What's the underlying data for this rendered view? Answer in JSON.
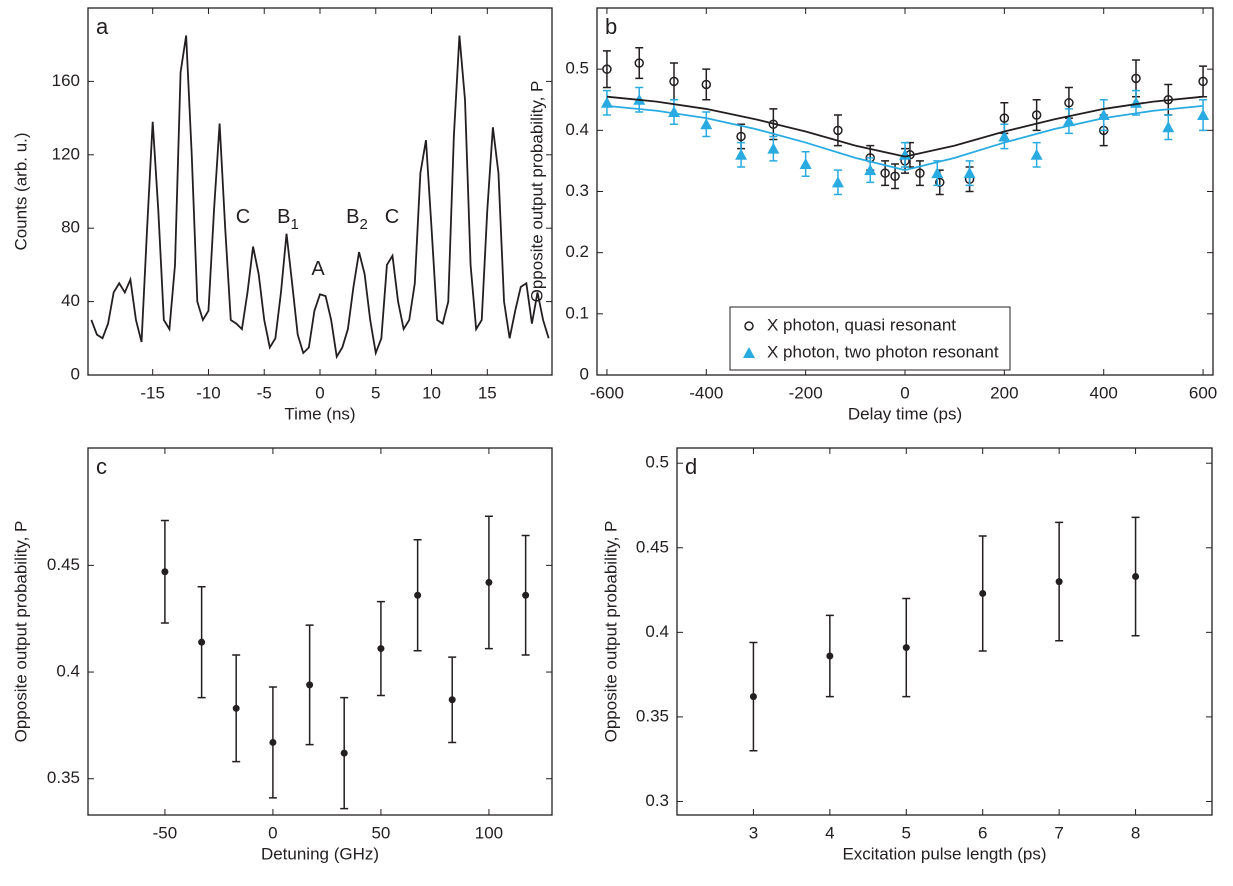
{
  "chart_data": [
    {
      "type": "line",
      "label": "a",
      "xlabel": "Time (ns)",
      "ylabel": "Counts (arb. u.)",
      "xlim": [
        -20.8,
        20.8
      ],
      "ylim": [
        0,
        200
      ],
      "xticks": [
        -15,
        -10,
        -5,
        0,
        5,
        10,
        15
      ],
      "yticks": [
        0,
        40,
        80,
        120,
        160
      ],
      "x": [
        -20.5,
        -20,
        -19.5,
        -19,
        -18.5,
        -18,
        -17.5,
        -17,
        -16.5,
        -16,
        -15.5,
        -15,
        -14.5,
        -14,
        -13.5,
        -13,
        -12.5,
        -12,
        -11.5,
        -11,
        -10.5,
        -10,
        -9.5,
        -9,
        -8.5,
        -8,
        -7.5,
        -7,
        -6.5,
        -6,
        -5.5,
        -5,
        -4.5,
        -4,
        -3.5,
        -3,
        -2.5,
        -2,
        -1.5,
        -1,
        -0.5,
        0,
        0.5,
        1,
        1.5,
        2,
        2.5,
        3,
        3.5,
        4,
        4.5,
        5,
        5.5,
        6,
        6.5,
        7,
        7.5,
        8,
        8.5,
        9,
        9.5,
        10,
        10.5,
        11,
        11.5,
        12,
        12.5,
        13,
        13.5,
        14,
        14.5,
        15,
        15.5,
        16,
        16.5,
        17,
        17.5,
        18,
        18.5,
        19,
        19.5,
        20,
        20.5
      ],
      "series": [
        {
          "color": "#231f20",
          "values": [
            30,
            22,
            20,
            28,
            45,
            50,
            45,
            52,
            30,
            18,
            80,
            138,
            90,
            30,
            25,
            60,
            165,
            185,
            120,
            40,
            30,
            35,
            90,
            137,
            80,
            30,
            28,
            25,
            45,
            70,
            55,
            30,
            15,
            20,
            45,
            77,
            50,
            22,
            12,
            15,
            35,
            44,
            43,
            30,
            10,
            15,
            25,
            48,
            67,
            55,
            30,
            12,
            20,
            60,
            65,
            40,
            25,
            30,
            50,
            110,
            128,
            80,
            30,
            28,
            40,
            130,
            185,
            150,
            60,
            25,
            30,
            90,
            135,
            110,
            40,
            20,
            35,
            48,
            50,
            28,
            45,
            30,
            20
          ]
        }
      ],
      "annotations": [
        {
          "text": "C"
        },
        {
          "text": "B",
          "sub": "1"
        },
        {
          "text": "A"
        },
        {
          "text": "B",
          "sub": "2"
        },
        {
          "text": "C"
        }
      ]
    },
    {
      "type": "scatter",
      "label": "b",
      "xlabel": "Delay time (ps)",
      "ylabel": "Opposite output probability, P",
      "xlim": [
        -620,
        620
      ],
      "ylim": [
        0,
        0.6
      ],
      "xticks": [
        -600,
        -400,
        -200,
        0,
        200,
        400,
        600
      ],
      "yticks": [
        0,
        0.1,
        0.2,
        0.3,
        0.4,
        0.5
      ],
      "legend": "bottom",
      "series": [
        {
          "name": "X photon, quasi resonant",
          "color": "#231f20",
          "marker": "circle-open",
          "x": [
            -600,
            -535,
            -465,
            -400,
            -330,
            -265,
            -135,
            -70,
            -40,
            -20,
            0,
            10,
            30,
            70,
            130,
            200,
            265,
            330,
            400,
            465,
            530,
            600
          ],
          "values": [
            0.5,
            0.51,
            0.48,
            0.475,
            0.39,
            0.41,
            0.4,
            0.355,
            0.33,
            0.325,
            0.35,
            0.36,
            0.33,
            0.315,
            0.32,
            0.42,
            0.425,
            0.445,
            0.4,
            0.485,
            0.45,
            0.48
          ],
          "errors": [
            0.03,
            0.025,
            0.03,
            0.025,
            0.02,
            0.025,
            0.025,
            0.02,
            0.02,
            0.02,
            0.02,
            0.02,
            0.02,
            0.02,
            0.02,
            0.025,
            0.025,
            0.025,
            0.025,
            0.03,
            0.025,
            0.025
          ]
        },
        {
          "name": "X photon, two photon resonant",
          "color": "#29abe2",
          "marker": "triangle",
          "x": [
            -600,
            -535,
            -465,
            -400,
            -330,
            -265,
            -200,
            -135,
            -70,
            0,
            65,
            130,
            200,
            265,
            330,
            400,
            465,
            530,
            600
          ],
          "values": [
            0.445,
            0.45,
            0.43,
            0.41,
            0.36,
            0.37,
            0.345,
            0.315,
            0.335,
            0.36,
            0.33,
            0.33,
            0.39,
            0.36,
            0.415,
            0.425,
            0.445,
            0.405,
            0.425
          ],
          "errors": [
            0.02,
            0.02,
            0.02,
            0.02,
            0.02,
            0.02,
            0.02,
            0.02,
            0.02,
            0.02,
            0.02,
            0.02,
            0.02,
            0.02,
            0.02,
            0.025,
            0.02,
            0.02,
            0.025
          ]
        },
        {
          "color": "#231f20",
          "mode": "line",
          "x": [
            -600,
            -500,
            -400,
            -300,
            -200,
            -100,
            0,
            100,
            200,
            300,
            400,
            500,
            600
          ],
          "values": [
            0.455,
            0.447,
            0.435,
            0.418,
            0.398,
            0.375,
            0.357,
            0.375,
            0.398,
            0.418,
            0.435,
            0.447,
            0.455
          ]
        },
        {
          "color": "#29abe2",
          "mode": "line",
          "x": [
            -600,
            -500,
            -400,
            -300,
            -200,
            -100,
            0,
            100,
            200,
            300,
            400,
            500,
            600
          ],
          "values": [
            0.44,
            0.432,
            0.42,
            0.402,
            0.38,
            0.355,
            0.335,
            0.355,
            0.38,
            0.402,
            0.42,
            0.432,
            0.44
          ]
        }
      ]
    },
    {
      "type": "scatter",
      "label": "c",
      "xlabel": "Detuning (GHz)",
      "ylabel": "Opposite output probability, P",
      "xlim": [
        -85.6,
        129.2
      ],
      "ylim": [
        0.333,
        0.505
      ],
      "xticks": [
        -50,
        0,
        50,
        100
      ],
      "yticks": [
        0.35,
        0.4,
        0.45
      ],
      "series": [
        {
          "color": "#231f20",
          "marker": "dot",
          "x": [
            -50,
            -33,
            -17,
            0,
            17,
            33,
            50,
            67,
            83,
            100,
            117
          ],
          "values": [
            0.447,
            0.414,
            0.383,
            0.367,
            0.394,
            0.362,
            0.411,
            0.436,
            0.387,
            0.442,
            0.436
          ],
          "errors": [
            0.024,
            0.026,
            0.025,
            0.026,
            0.028,
            0.026,
            0.022,
            0.026,
            0.02,
            0.031,
            0.028
          ]
        }
      ]
    },
    {
      "type": "scatter",
      "label": "d",
      "xlabel": "Excitation pulse length (ps)",
      "ylabel": "Opposite output probability, P",
      "xlim": [
        2,
        9
      ],
      "ylim": [
        0.292,
        0.509
      ],
      "xticks": [
        3,
        4,
        5,
        6,
        7,
        8
      ],
      "yticks": [
        0.3,
        0.35,
        0.4,
        0.45,
        0.5
      ],
      "series": [
        {
          "color": "#231f20",
          "marker": "dot",
          "x": [
            3,
            4,
            5,
            6,
            7,
            8
          ],
          "values": [
            0.362,
            0.386,
            0.391,
            0.423,
            0.43,
            0.433
          ],
          "errors": [
            0.032,
            0.024,
            0.029,
            0.034,
            0.035,
            0.035
          ]
        }
      ]
    }
  ]
}
